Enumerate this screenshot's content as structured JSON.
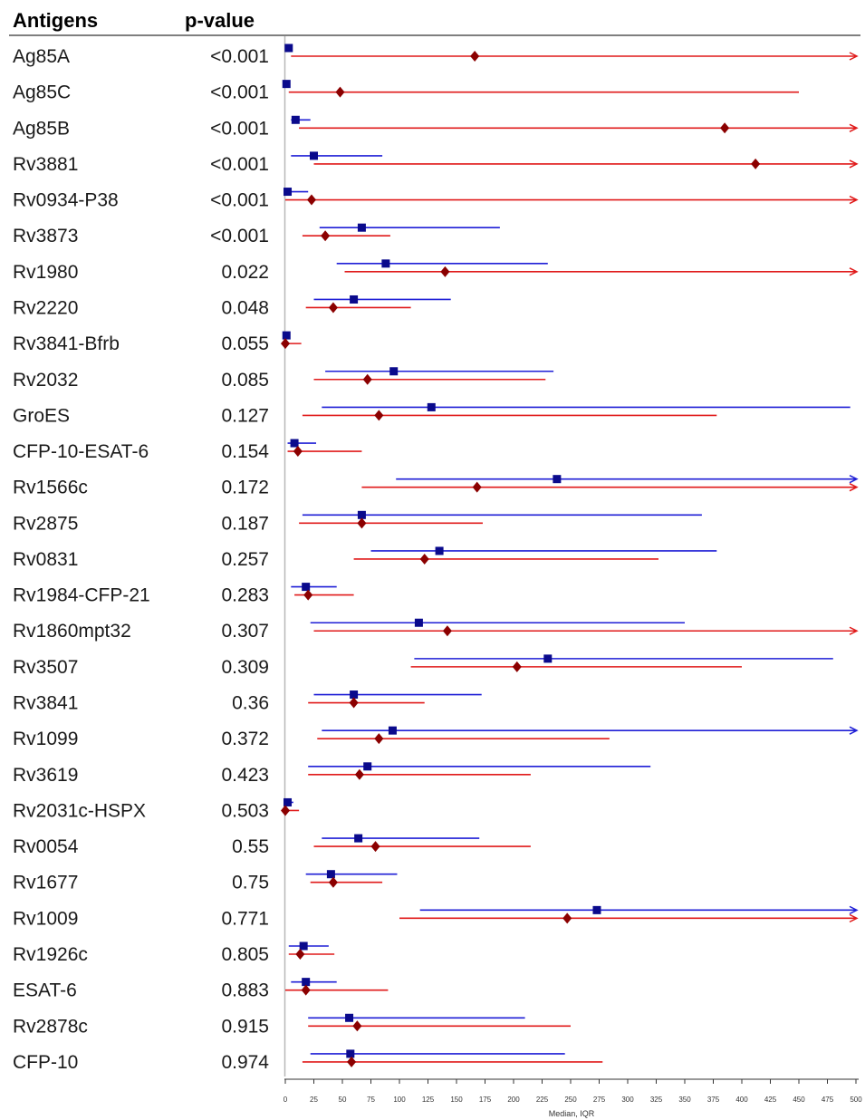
{
  "chart_data": {
    "type": "forest",
    "headers": {
      "antigens": "Antigens",
      "pvalue": "p-value"
    },
    "xlabel": "Median, IQR",
    "xlim": [
      0,
      500
    ],
    "xticks": [
      0,
      25,
      50,
      75,
      100,
      125,
      150,
      175,
      200,
      225,
      250,
      275,
      300,
      325,
      350,
      375,
      400,
      425,
      450,
      475,
      500
    ],
    "series": [
      {
        "color": "#1f1fd6",
        "marker": "square",
        "marker_color": "#0a0a8c"
      },
      {
        "color": "#e01a1a",
        "marker": "diamond",
        "marker_color": "#8b0000"
      }
    ],
    "rows": [
      {
        "antigen": "Ag85A",
        "pvalue": "<0.001",
        "s1": {
          "median": 3,
          "low": 0,
          "high": 5
        },
        "s2": {
          "median": 166,
          "low": 5,
          "high": 500,
          "arrow": true
        }
      },
      {
        "antigen": "Ag85C",
        "pvalue": "<0.001",
        "s1": {
          "median": 1,
          "low": 0,
          "high": 3
        },
        "s2": {
          "median": 48,
          "low": 3,
          "high": 450
        }
      },
      {
        "antigen": "Ag85B",
        "pvalue": "<0.001",
        "s1": {
          "median": 9,
          "low": 5,
          "high": 22
        },
        "s2": {
          "median": 385,
          "low": 12,
          "high": 500,
          "arrow": true
        }
      },
      {
        "antigen": "Rv3881",
        "pvalue": "<0.001",
        "s1": {
          "median": 25,
          "low": 5,
          "high": 85
        },
        "s2": {
          "median": 412,
          "low": 25,
          "high": 500,
          "arrow": true
        }
      },
      {
        "antigen": "Rv0934-P38",
        "pvalue": "<0.001",
        "s1": {
          "median": 2,
          "low": 0,
          "high": 20
        },
        "s2": {
          "median": 23,
          "low": 0,
          "high": 500,
          "arrow": true
        }
      },
      {
        "antigen": "Rv3873",
        "pvalue": "<0.001",
        "s1": {
          "median": 67,
          "low": 30,
          "high": 188
        },
        "s2": {
          "median": 35,
          "low": 15,
          "high": 92
        }
      },
      {
        "antigen": "Rv1980",
        "pvalue": "0.022",
        "s1": {
          "median": 88,
          "low": 45,
          "high": 230
        },
        "s2": {
          "median": 140,
          "low": 52,
          "high": 500,
          "arrow": true
        }
      },
      {
        "antigen": "Rv2220",
        "pvalue": "0.048",
        "s1": {
          "median": 60,
          "low": 25,
          "high": 145
        },
        "s2": {
          "median": 42,
          "low": 18,
          "high": 110
        }
      },
      {
        "antigen": "Rv3841-Bfrb",
        "pvalue": "0.055",
        "s1": {
          "median": 1,
          "low": 0,
          "high": 2
        },
        "s2": {
          "median": 0,
          "low": 0,
          "high": 14
        }
      },
      {
        "antigen": "Rv2032",
        "pvalue": "0.085",
        "s1": {
          "median": 95,
          "low": 35,
          "high": 235
        },
        "s2": {
          "median": 72,
          "low": 25,
          "high": 228
        }
      },
      {
        "antigen": "GroES",
        "pvalue": "0.127",
        "s1": {
          "median": 128,
          "low": 32,
          "high": 495
        },
        "s2": {
          "median": 82,
          "low": 15,
          "high": 378
        }
      },
      {
        "antigen": "CFP-10-ESAT-6",
        "pvalue": "0.154",
        "s1": {
          "median": 8,
          "low": 2,
          "high": 27
        },
        "s2": {
          "median": 11,
          "low": 2,
          "high": 67
        }
      },
      {
        "antigen": "Rv1566c",
        "pvalue": "0.172",
        "s1": {
          "median": 238,
          "low": 97,
          "high": 500,
          "arrow": true
        },
        "s2": {
          "median": 168,
          "low": 67,
          "high": 500,
          "arrow": true
        }
      },
      {
        "antigen": "Rv2875",
        "pvalue": "0.187",
        "s1": {
          "median": 67,
          "low": 15,
          "high": 365
        },
        "s2": {
          "median": 67,
          "low": 12,
          "high": 173
        }
      },
      {
        "antigen": "Rv0831",
        "pvalue": "0.257",
        "s1": {
          "median": 135,
          "low": 75,
          "high": 378
        },
        "s2": {
          "median": 122,
          "low": 60,
          "high": 327
        }
      },
      {
        "antigen": "Rv1984-CFP-21",
        "pvalue": "0.283",
        "s1": {
          "median": 18,
          "low": 5,
          "high": 45
        },
        "s2": {
          "median": 20,
          "low": 8,
          "high": 60
        }
      },
      {
        "antigen": "Rv1860mpt32",
        "pvalue": "0.307",
        "s1": {
          "median": 117,
          "low": 22,
          "high": 350
        },
        "s2": {
          "median": 142,
          "low": 25,
          "high": 500,
          "arrow": true
        }
      },
      {
        "antigen": "Rv3507",
        "pvalue": "0.309",
        "s1": {
          "median": 230,
          "low": 113,
          "high": 480
        },
        "s2": {
          "median": 203,
          "low": 110,
          "high": 400
        }
      },
      {
        "antigen": "Rv3841",
        "pvalue": "0.36",
        "s1": {
          "median": 60,
          "low": 25,
          "high": 172
        },
        "s2": {
          "median": 60,
          "low": 20,
          "high": 122
        }
      },
      {
        "antigen": "Rv1099",
        "pvalue": "0.372",
        "s1": {
          "median": 94,
          "low": 32,
          "high": 500,
          "arrow": true
        },
        "s2": {
          "median": 82,
          "low": 28,
          "high": 284
        }
      },
      {
        "antigen": "Rv3619",
        "pvalue": "0.423",
        "s1": {
          "median": 72,
          "low": 20,
          "high": 320
        },
        "s2": {
          "median": 65,
          "low": 20,
          "high": 215
        }
      },
      {
        "antigen": "Rv2031c-HSPX",
        "pvalue": "0.503",
        "s1": {
          "median": 2,
          "low": 0,
          "high": 7
        },
        "s2": {
          "median": 0,
          "low": 0,
          "high": 12
        }
      },
      {
        "antigen": "Rv0054",
        "pvalue": "0.55",
        "s1": {
          "median": 64,
          "low": 32,
          "high": 170
        },
        "s2": {
          "median": 79,
          "low": 25,
          "high": 215
        }
      },
      {
        "antigen": "Rv1677",
        "pvalue": "0.75",
        "s1": {
          "median": 40,
          "low": 18,
          "high": 98
        },
        "s2": {
          "median": 42,
          "low": 22,
          "high": 85
        }
      },
      {
        "antigen": "Rv1009",
        "pvalue": "0.771",
        "s1": {
          "median": 273,
          "low": 118,
          "high": 500,
          "arrow": true
        },
        "s2": {
          "median": 247,
          "low": 100,
          "high": 500,
          "arrow": true
        }
      },
      {
        "antigen": "Rv1926c",
        "pvalue": "0.805",
        "s1": {
          "median": 16,
          "low": 3,
          "high": 38
        },
        "s2": {
          "median": 13,
          "low": 3,
          "high": 43
        }
      },
      {
        "antigen": "ESAT-6",
        "pvalue": "0.883",
        "s1": {
          "median": 18,
          "low": 5,
          "high": 45
        },
        "s2": {
          "median": 18,
          "low": 0,
          "high": 90
        }
      },
      {
        "antigen": "Rv2878c",
        "pvalue": "0.915",
        "s1": {
          "median": 56,
          "low": 20,
          "high": 210
        },
        "s2": {
          "median": 63,
          "low": 20,
          "high": 250
        }
      },
      {
        "antigen": "CFP-10",
        "pvalue": "0.974",
        "s1": {
          "median": 57,
          "low": 22,
          "high": 245
        },
        "s2": {
          "median": 58,
          "low": 15,
          "high": 278
        }
      }
    ]
  }
}
